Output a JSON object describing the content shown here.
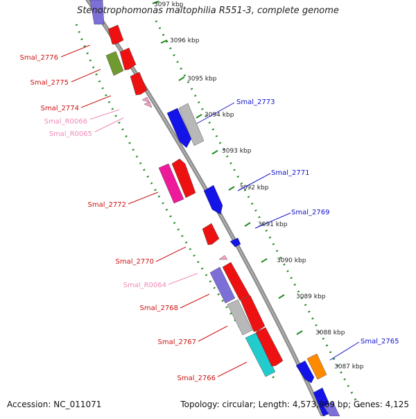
{
  "title": "Stenotrophomonas maltophilia R551-3, complete genome",
  "footer": {
    "accession": "Accession: NC_011071",
    "topology": "Topology: circular; Length: 4,573,969 bp; Genes: 4,125"
  },
  "colors": {
    "backbone": "#909090",
    "tick": "#1f8a1f",
    "forward_label": "#1010cc",
    "reverse_label": "#cc1111",
    "rna_label": "#f088b8"
  },
  "ticks": [
    "3097 kbp",
    "3096 kbp",
    "3095 kbp",
    "3094 kbp",
    "3093 kbp",
    "3092 kbp",
    "3091 kbp",
    "3090 kbp",
    "3089 kbp",
    "3088 kbp",
    "3087 kbp"
  ],
  "gene_labels": {
    "left": [
      "Smal_2776",
      "Smal_2775",
      "Smal_2774",
      "Smal_R0066",
      "Smal_R0065",
      "Smal_2772",
      "Smal_2770",
      "Smal_R0064",
      "Smal_2768",
      "Smal_2767",
      "Smal_2766"
    ],
    "right": [
      "Smal_2773",
      "Smal_2771",
      "Smal_2769",
      "Smal_2765"
    ]
  }
}
